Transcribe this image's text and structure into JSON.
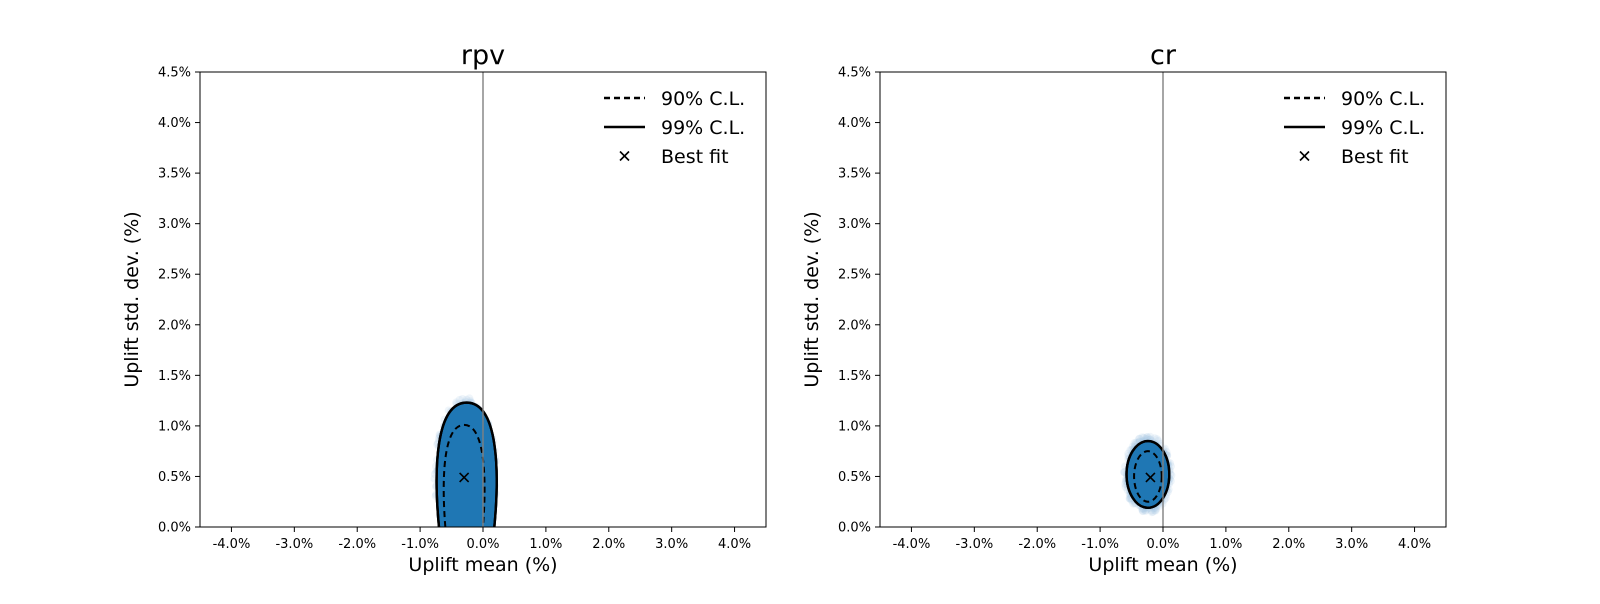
{
  "chart_data": [
    {
      "type": "scatter",
      "title": "rpv",
      "xlabel": "Uplift mean (%)",
      "ylabel": "Uplift std. dev. (%)",
      "xlim": [
        -4.5,
        4.5
      ],
      "ylim": [
        0,
        4.5
      ],
      "xticks": [
        -4.0,
        -3.0,
        -2.0,
        -1.0,
        0.0,
        1.0,
        2.0,
        3.0,
        4.0
      ],
      "xtick_labels": [
        "-4.0%",
        "-3.0%",
        "-2.0%",
        "-1.0%",
        "0.0%",
        "1.0%",
        "2.0%",
        "3.0%",
        "4.0%"
      ],
      "yticks": [
        0.0,
        0.5,
        1.0,
        1.5,
        2.0,
        2.5,
        3.0,
        3.5,
        4.0,
        4.5
      ],
      "ytick_labels": [
        "0.0%",
        "0.5%",
        "1.0%",
        "1.5%",
        "2.0%",
        "2.5%",
        "3.0%",
        "3.5%",
        "4.0%",
        "4.5%"
      ],
      "reference_line_x": 0.0,
      "legend": [
        "90% C.L.",
        "99% C.L.",
        "Best fit"
      ],
      "legend_position": "top-right",
      "best_fit": {
        "x": -0.3,
        "y": 0.49
      },
      "contour_90": {
        "cx": -0.3,
        "rx": 0.34,
        "y_bottom": 0.0,
        "y_top": 1.01
      },
      "contour_99": {
        "cx": -0.26,
        "rx": 0.5,
        "y_bottom": 0.0,
        "y_top": 1.23
      },
      "sample_cloud": {
        "cx": -0.28,
        "cy": 0.5,
        "rx": 0.5,
        "ry": 0.78
      },
      "colors": {
        "fill": "#1f77b4",
        "cloud": "#a9c9e3",
        "zero_line": "#808080"
      }
    },
    {
      "type": "scatter",
      "title": "cr",
      "xlabel": "Uplift mean (%)",
      "ylabel": "Uplift std. dev. (%)",
      "xlim": [
        -4.5,
        4.5
      ],
      "ylim": [
        0,
        4.5
      ],
      "xticks": [
        -4.0,
        -3.0,
        -2.0,
        -1.0,
        0.0,
        1.0,
        2.0,
        3.0,
        4.0
      ],
      "xtick_labels": [
        "-4.0%",
        "-3.0%",
        "-2.0%",
        "-1.0%",
        "0.0%",
        "1.0%",
        "2.0%",
        "3.0%",
        "4.0%"
      ],
      "yticks": [
        0.0,
        0.5,
        1.0,
        1.5,
        2.0,
        2.5,
        3.0,
        3.5,
        4.0,
        4.5
      ],
      "ytick_labels": [
        "0.0%",
        "0.5%",
        "1.0%",
        "1.5%",
        "2.0%",
        "2.5%",
        "3.0%",
        "3.5%",
        "4.0%",
        "4.5%"
      ],
      "reference_line_x": 0.0,
      "legend": [
        "90% C.L.",
        "99% C.L.",
        "Best fit"
      ],
      "legend_position": "top-right",
      "best_fit": {
        "x": -0.2,
        "y": 0.49
      },
      "contour_90": {
        "cx": -0.24,
        "rx": 0.22,
        "cy": 0.5,
        "ry": 0.25
      },
      "contour_99": {
        "cx": -0.24,
        "rx": 0.34,
        "cy": 0.52,
        "ry": 0.33
      },
      "sample_cloud": {
        "cx": -0.24,
        "cy": 0.52,
        "rx": 0.38,
        "ry": 0.38
      },
      "colors": {
        "fill": "#1f77b4",
        "cloud": "#a9c9e3",
        "zero_line": "#808080"
      }
    }
  ]
}
